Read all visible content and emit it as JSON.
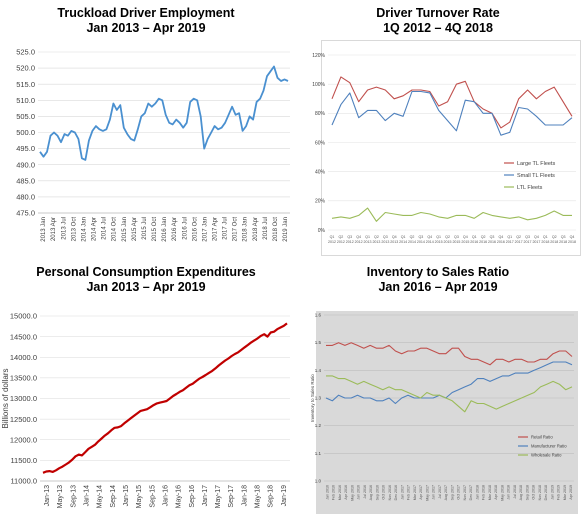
{
  "chart_data": [
    {
      "type": "line",
      "title_lines": [
        "Truckload Driver Employment",
        "Jan 2013 – Apr 2019"
      ],
      "ylim": [
        475,
        525
      ],
      "yticks": [
        "475.0",
        "480.0",
        "485.0",
        "490.0",
        "495.0",
        "500.0",
        "505.0",
        "510.0",
        "515.0",
        "520.0",
        "525.0"
      ],
      "xticks": [
        "2013 Jan",
        "2013 Apr",
        "2013 Jul",
        "2013 Oct",
        "2014 Jan",
        "2014 Apr",
        "2014 Jul",
        "2014 Oct",
        "2015 Jan",
        "2015 Apr",
        "2015 Jul",
        "2015 Oct",
        "2016 Jan",
        "2016 Apr",
        "2016 Jul",
        "2016 Oct",
        "2017 Jan",
        "2017 Apr",
        "2017 Jul",
        "2017 Oct",
        "2018 Jan",
        "2018 Apr",
        "2018 Jul",
        "2018 Oct",
        "2019 Jan"
      ],
      "color": "#4a90d0",
      "series": [
        {
          "values": [
            494.0,
            492.5,
            494.0,
            499.0,
            500.0,
            499.0,
            497.0,
            499.5,
            499.0,
            500.5,
            500.0,
            498.0,
            492.0,
            491.5,
            497.5,
            500.5,
            502.0,
            501.0,
            500.5,
            501.0,
            504.0,
            509.0,
            507.0,
            508.5,
            501.5,
            499.5,
            498.0,
            497.5,
            501.0,
            505.0,
            506.0,
            509.0,
            508.0,
            509.0,
            510.5,
            510.0,
            505.5,
            503.0,
            502.5,
            504.0,
            503.0,
            501.5,
            503.0,
            509.5,
            510.5,
            510.0,
            505.0,
            495.0,
            498.0,
            500.0,
            502.0,
            501.0,
            501.5,
            503.0,
            505.5,
            508.0,
            505.5,
            506.0,
            500.5,
            502.0,
            505.0,
            504.0,
            509.5,
            510.5,
            513.0,
            517.5,
            519.0,
            520.5,
            517.0,
            516.0,
            516.5,
            516.0
          ]
        }
      ]
    },
    {
      "type": "line",
      "title_lines": [
        "Driver Turnover Rate",
        "1Q 2012 – 4Q 2018"
      ],
      "ylim": [
        0,
        120
      ],
      "yticks": [
        "0%",
        "20%",
        "40%",
        "60%",
        "80%",
        "100%",
        "120%"
      ],
      "xticks": [
        "Q1",
        "Q2",
        "Q3",
        "Q4",
        "Q1",
        "Q2",
        "Q3",
        "Q4",
        "Q1",
        "Q2",
        "Q3",
        "Q4",
        "Q1",
        "Q2",
        "Q3",
        "Q4",
        "Q1",
        "Q2",
        "Q3",
        "Q4",
        "Q1",
        "Q2",
        "Q3",
        "Q4",
        "Q1",
        "Q2",
        "Q3",
        "Q4"
      ],
      "xticks_years": [
        "2012",
        "2012",
        "2012",
        "2012",
        "2013",
        "2013",
        "2013",
        "2013",
        "2014",
        "2014",
        "2014",
        "2014",
        "2015",
        "2015",
        "2015",
        "2015",
        "2016",
        "2016",
        "2016",
        "2016",
        "2017",
        "2017",
        "2017",
        "2017",
        "2018",
        "2018",
        "2018",
        "2018"
      ],
      "legend_position": "center-right",
      "series": [
        {
          "name": "Large TL Fleets",
          "color": "#c0504d",
          "values": [
            90,
            105,
            101,
            88,
            96,
            98,
            96,
            90,
            92,
            96,
            96,
            95,
            85,
            88,
            100,
            102,
            88,
            83,
            80,
            70,
            74,
            90,
            96,
            90,
            95,
            98,
            88,
            78
          ]
        },
        {
          "name": "Small TL Fleets",
          "color": "#4f81bd",
          "values": [
            72,
            86,
            94,
            77,
            82,
            82,
            75,
            80,
            78,
            95,
            95,
            94,
            82,
            75,
            68,
            89,
            88,
            80,
            80,
            65,
            67,
            84,
            83,
            78,
            72,
            72,
            72,
            77
          ]
        },
        {
          "name": "LTL Fleets",
          "color": "#9bbb59",
          "values": [
            8,
            9,
            8,
            10,
            15,
            6,
            12,
            11,
            10,
            10,
            12,
            11,
            9,
            8,
            10,
            10,
            8,
            12,
            10,
            9,
            8,
            9,
            7,
            8,
            10,
            13,
            10,
            10
          ]
        }
      ]
    },
    {
      "type": "line",
      "title_lines": [
        "Personal Consumption Expenditures",
        "Jan 2013 – Apr 2019"
      ],
      "ylabel": "Billions of dollars",
      "ylim": [
        11000,
        15000
      ],
      "yticks": [
        "11000.0",
        "11500.0",
        "12000.0",
        "12500.0",
        "13000.0",
        "13500.0",
        "14000.0",
        "14500.0",
        "15000.0"
      ],
      "xticks": [
        "Jan-13",
        "May-13",
        "Sep-13",
        "Jan-14",
        "May-14",
        "Sep-14",
        "Jan-15",
        "May-15",
        "Sep-15",
        "Jan-16",
        "May-16",
        "Sep-16",
        "Jan-17",
        "May-17",
        "Sep-17",
        "Jan-18",
        "May-18",
        "Sep-18",
        "Jan-19"
      ],
      "color": "#c00000",
      "series": [
        {
          "values": [
            11200,
            11230,
            11240,
            11220,
            11260,
            11310,
            11350,
            11400,
            11450,
            11520,
            11600,
            11640,
            11620,
            11700,
            11780,
            11830,
            11880,
            11960,
            12030,
            12100,
            12160,
            12230,
            12290,
            12300,
            12330,
            12400,
            12460,
            12520,
            12580,
            12640,
            12700,
            12720,
            12740,
            12790,
            12840,
            12880,
            12900,
            12920,
            12940,
            13000,
            13060,
            13110,
            13160,
            13200,
            13260,
            13320,
            13360,
            13420,
            13480,
            13520,
            13570,
            13620,
            13670,
            13730,
            13800,
            13860,
            13920,
            13970,
            14030,
            14080,
            14120,
            14180,
            14240,
            14300,
            14360,
            14410,
            14460,
            14520,
            14560,
            14500,
            14600,
            14620,
            14680,
            14720,
            14760,
            14820
          ]
        }
      ]
    },
    {
      "type": "line",
      "title_lines": [
        "Inventory to Sales Ratio",
        "Jan 2016 – Apr 2019"
      ],
      "ylabel": "Inventory to Sales Ratio",
      "ylim": [
        1.0,
        1.6
      ],
      "yticks": [
        "1.0",
        "1.1",
        "1.2",
        "1.3",
        "1.4",
        "1.5",
        "1.6"
      ],
      "xticks": [
        "Jan 2016",
        "Feb 2016",
        "Mar 2016",
        "Apr 2016",
        "May 2016",
        "Jun 2016",
        "Jul 2016",
        "Aug 2016",
        "Sep 2016",
        "Oct 2016",
        "Nov 2016",
        "Dec 2016",
        "Jan 2017",
        "Feb 2017",
        "Mar 2017",
        "Apr 2017",
        "May 2017",
        "Jun 2017",
        "Jul 2017",
        "Aug 2017",
        "Sep 2017",
        "Oct 2017",
        "Nov 2017",
        "Dec 2017",
        "Jan 2018",
        "Feb 2018",
        "Mar 2018",
        "Apr 2018",
        "May 2018",
        "Jun 2018",
        "Jul 2018",
        "Aug 2018",
        "Sep 2018",
        "Oct 2018",
        "Nov 2018",
        "Dec 2018",
        "Jan 2019",
        "Feb 2019",
        "Mar 2019",
        "Apr 2019"
      ],
      "legend_position": "bottom-right",
      "background": "#d9d9d9",
      "series": [
        {
          "name": "Retail Ratio",
          "color": "#c0504d",
          "values": [
            1.49,
            1.49,
            1.5,
            1.49,
            1.5,
            1.49,
            1.48,
            1.49,
            1.48,
            1.48,
            1.49,
            1.47,
            1.46,
            1.47,
            1.47,
            1.48,
            1.48,
            1.47,
            1.46,
            1.46,
            1.48,
            1.48,
            1.45,
            1.44,
            1.44,
            1.43,
            1.42,
            1.44,
            1.44,
            1.43,
            1.44,
            1.44,
            1.43,
            1.43,
            1.44,
            1.44,
            1.46,
            1.47,
            1.47,
            1.45
          ]
        },
        {
          "name": "Manufacturer Ratio",
          "color": "#4f81bd",
          "values": [
            1.3,
            1.29,
            1.31,
            1.3,
            1.3,
            1.31,
            1.3,
            1.3,
            1.29,
            1.29,
            1.3,
            1.28,
            1.3,
            1.31,
            1.3,
            1.3,
            1.3,
            1.3,
            1.31,
            1.3,
            1.32,
            1.33,
            1.34,
            1.35,
            1.37,
            1.37,
            1.36,
            1.37,
            1.38,
            1.38,
            1.39,
            1.39,
            1.39,
            1.4,
            1.41,
            1.42,
            1.43,
            1.43,
            1.43,
            1.42
          ]
        },
        {
          "name": "Wholesale Ratio",
          "color": "#9bbb59",
          "values": [
            1.38,
            1.38,
            1.37,
            1.37,
            1.36,
            1.35,
            1.36,
            1.35,
            1.34,
            1.33,
            1.34,
            1.33,
            1.33,
            1.32,
            1.31,
            1.3,
            1.32,
            1.31,
            1.31,
            1.3,
            1.29,
            1.27,
            1.25,
            1.29,
            1.28,
            1.28,
            1.27,
            1.26,
            1.27,
            1.28,
            1.29,
            1.3,
            1.31,
            1.32,
            1.34,
            1.35,
            1.36,
            1.35,
            1.33,
            1.34
          ]
        }
      ]
    }
  ]
}
